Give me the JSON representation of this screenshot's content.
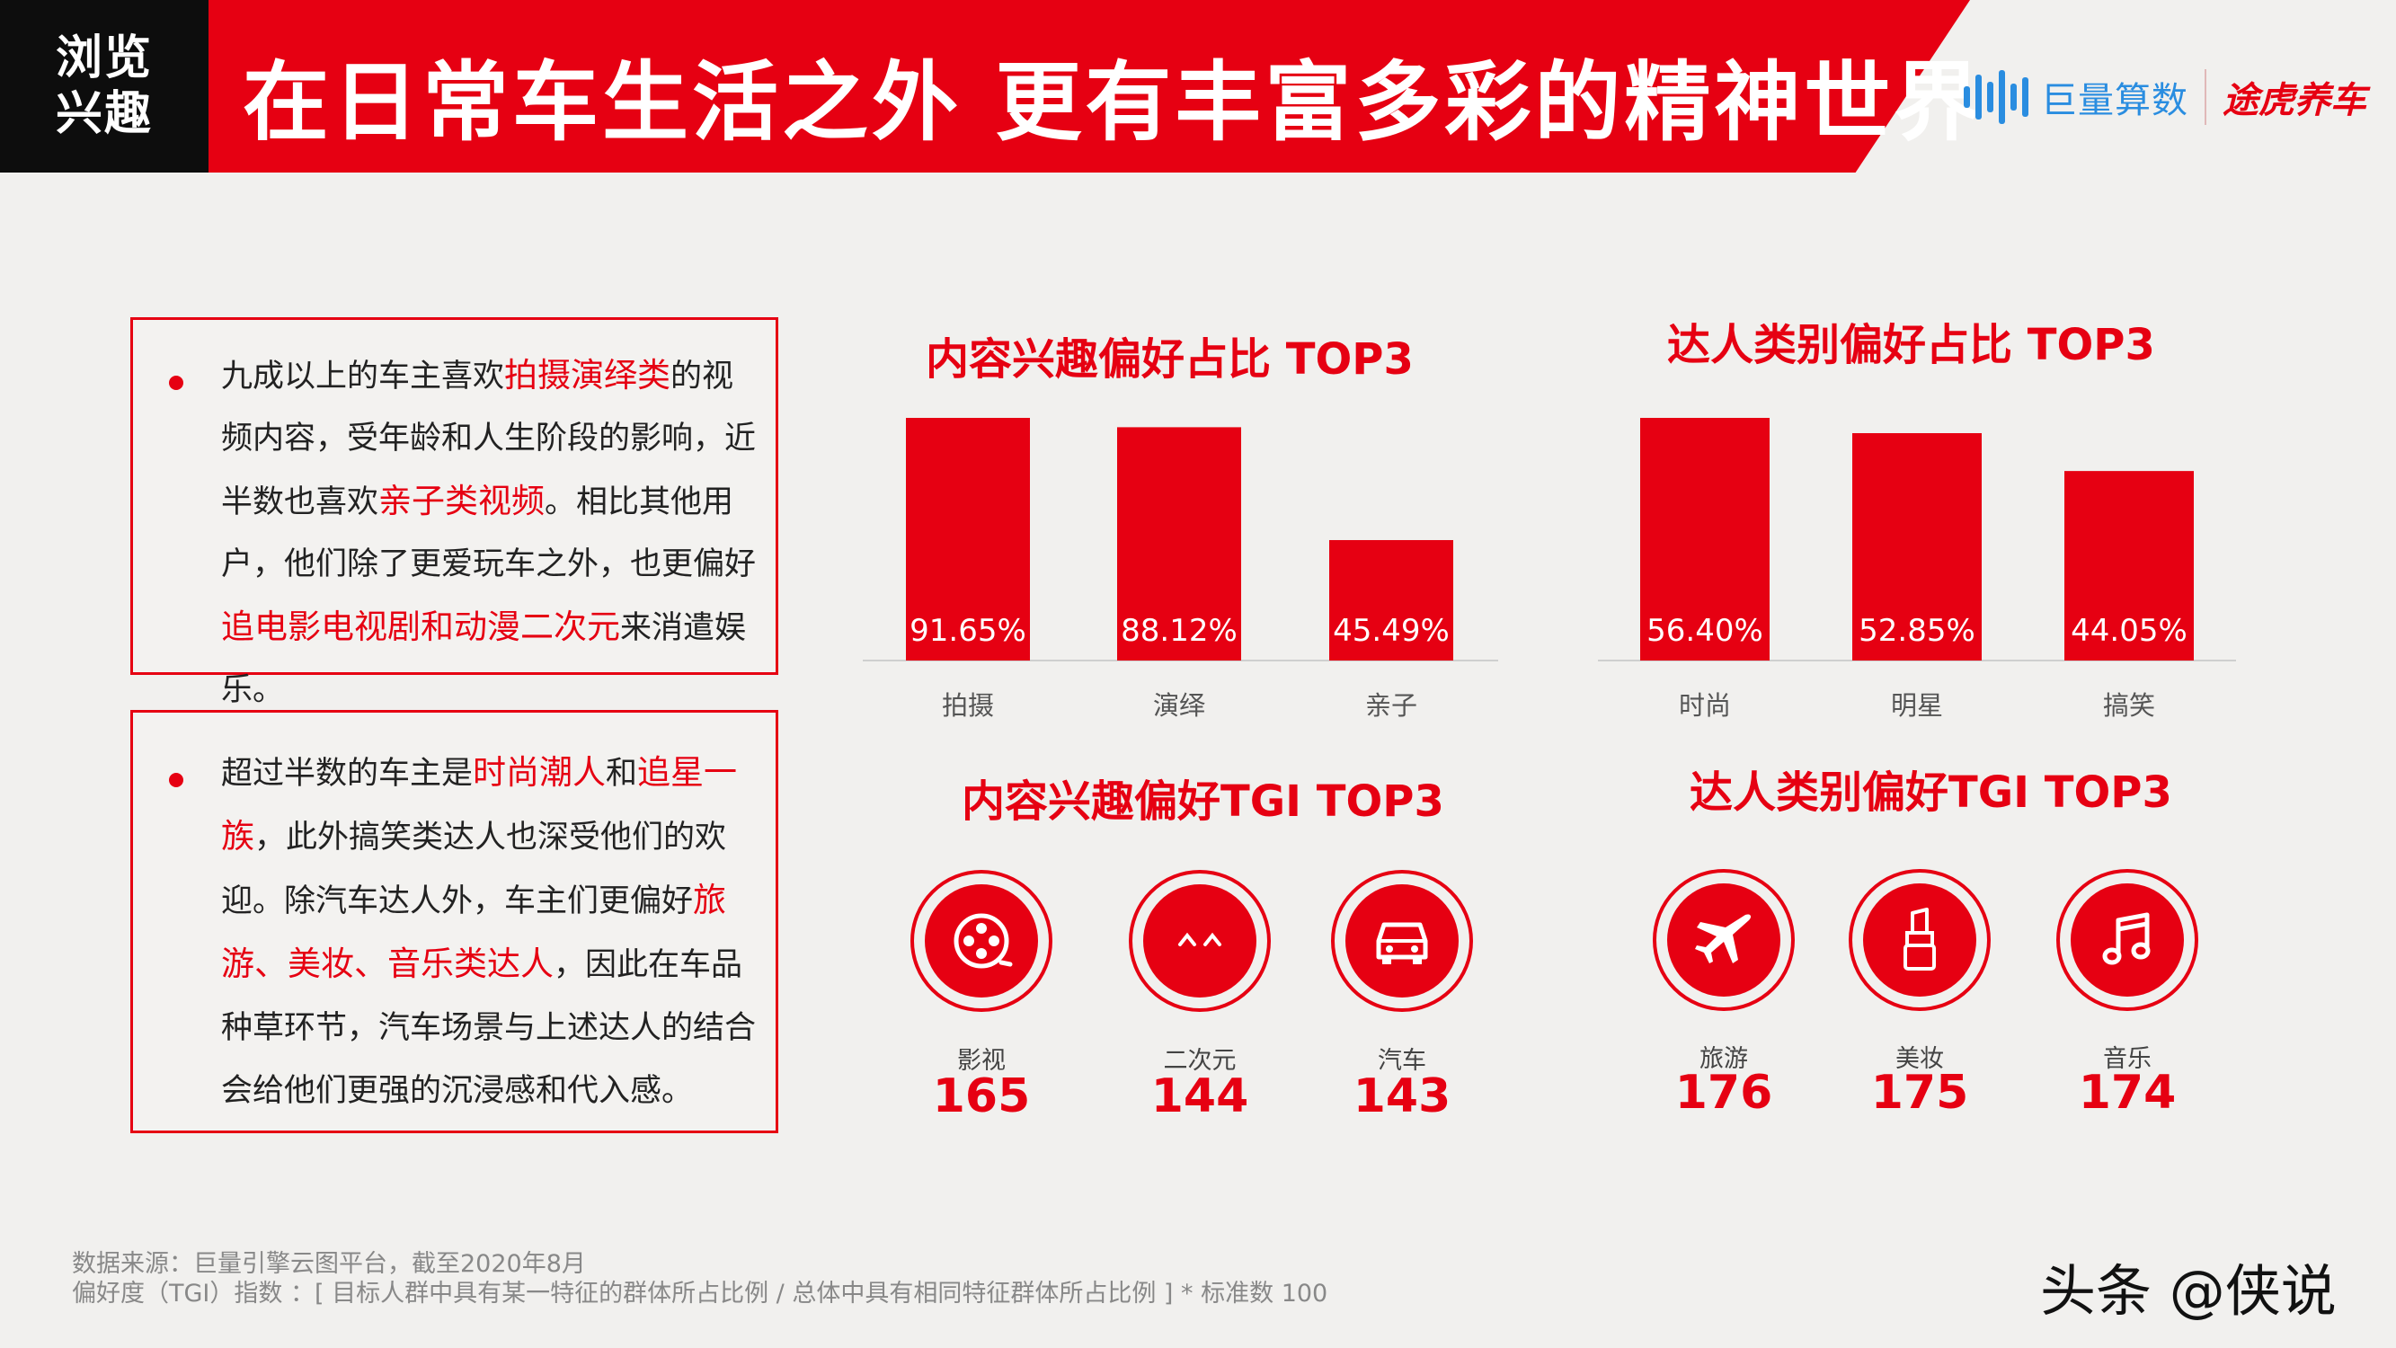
{
  "header": {
    "tag_line1": "浏览",
    "tag_line2": "兴趣",
    "title": "在日常车生活之外 更有丰富多彩的精神世界",
    "logo_juliang": "巨量算数",
    "logo_tuhu": "途虎养车"
  },
  "box1": {
    "segments": [
      {
        "text": "九成以上的车主喜欢",
        "hl": false
      },
      {
        "text": "拍摄演绎类",
        "hl": true
      },
      {
        "text": "的视频内容，受年龄和人生阶段的影响，近半数也喜欢",
        "hl": false
      },
      {
        "text": "亲子类视频",
        "hl": true
      },
      {
        "text": "。相比其他用户，他们除了更爱玩车之外，也更偏好",
        "hl": false
      },
      {
        "text": "追电影电视剧和动漫二次元",
        "hl": true
      },
      {
        "text": "来消遣娱乐。",
        "hl": false
      }
    ]
  },
  "box2": {
    "segments": [
      {
        "text": "超过半数的车主是",
        "hl": false
      },
      {
        "text": "时尚潮人",
        "hl": true
      },
      {
        "text": "和",
        "hl": false
      },
      {
        "text": "追星一族",
        "hl": true
      },
      {
        "text": "，此外搞笑类达人也深受他们的欢迎。除汽车达人外，车主们更偏好",
        "hl": false
      },
      {
        "text": "旅游、美妆、音乐类达人",
        "hl": true
      },
      {
        "text": "，因此在车品种草环节，汽车场景与上述达人的结合会给他们更强的沉浸感和代入感。",
        "hl": false
      }
    ]
  },
  "section_titles": {
    "content_share": "内容兴趣偏好占比 TOP3",
    "kol_share": "达人类别偏好占比 TOP3",
    "content_tgi": "内容兴趣偏好TGI TOP3",
    "kol_tgi": "达人类别偏好TGI TOP3"
  },
  "chart_data": [
    {
      "type": "bar",
      "title": "内容兴趣偏好占比 TOP3",
      "categories": [
        "拍摄",
        "演绎",
        "亲子"
      ],
      "values": [
        91.65,
        88.12,
        45.49
      ],
      "value_labels": [
        "91.65%",
        "88.12%",
        "45.49%"
      ],
      "ylim": [
        0,
        100
      ],
      "color": "#e60012"
    },
    {
      "type": "bar",
      "title": "达人类别偏好占比 TOP3",
      "categories": [
        "时尚",
        "明星",
        "搞笑"
      ],
      "values": [
        56.4,
        52.85,
        44.05
      ],
      "value_labels": [
        "56.40%",
        "52.85%",
        "44.05%"
      ],
      "ylim": [
        0,
        64
      ],
      "color": "#e60012"
    }
  ],
  "content_tgi": [
    {
      "icon": "film-reel-icon",
      "label": "影视",
      "value": "165"
    },
    {
      "icon": "anime-face-icon",
      "label": "二次元",
      "value": "144"
    },
    {
      "icon": "car-icon",
      "label": "汽车",
      "value": "143"
    }
  ],
  "kol_tgi": [
    {
      "icon": "airplane-icon",
      "label": "旅游",
      "value": "176"
    },
    {
      "icon": "lipstick-icon",
      "label": "美妆",
      "value": "175"
    },
    {
      "icon": "music-note-icon",
      "label": "音乐",
      "value": "174"
    }
  ],
  "source": {
    "line1": "数据来源：巨量引擎云图平台，截至2020年8月",
    "line2": "偏好度（TGI）指数 ：[ 目标人群中具有某一特征的群体所占比例 / 总体中具有相同特征群体所占比例 ] * 标准数 100"
  },
  "watermark": "头条 @侠说"
}
